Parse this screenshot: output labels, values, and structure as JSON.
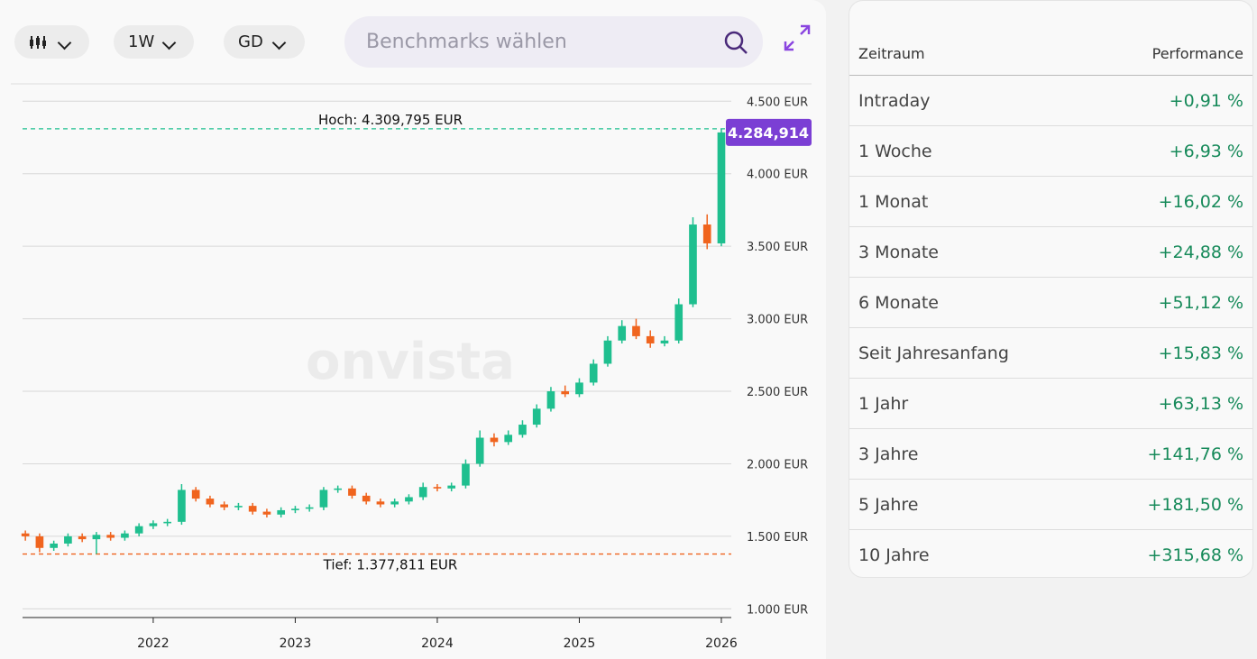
{
  "toolbar": {
    "interval": "1W",
    "indicator": "GD",
    "search_placeholder": "Benchmarks wählen"
  },
  "chart_data": {
    "type": "candlestick",
    "watermark": "onvista",
    "x": [
      2021.1,
      2021.2,
      2021.3,
      2021.4,
      2021.5,
      2021.6,
      2021.7,
      2021.8,
      2021.9,
      2022.0,
      2022.1,
      2022.2,
      2022.3,
      2022.4,
      2022.5,
      2022.6,
      2022.7,
      2022.8,
      2022.9,
      2023.0,
      2023.1,
      2023.2,
      2023.3,
      2023.4,
      2023.5,
      2023.6,
      2023.7,
      2023.8,
      2023.9,
      2024.0,
      2024.1,
      2024.2,
      2024.3,
      2024.4,
      2024.5,
      2024.6,
      2024.7,
      2024.8,
      2024.9,
      2025.0,
      2025.1,
      2025.2,
      2025.3,
      2025.4,
      2025.5,
      2025.6,
      2025.7,
      2025.8,
      2025.9,
      2026.0
    ],
    "open": [
      1520,
      1500,
      1420,
      1450,
      1500,
      1480,
      1510,
      1490,
      1520,
      1570,
      1590,
      1600,
      1820,
      1760,
      1720,
      1700,
      1710,
      1670,
      1650,
      1680,
      1690,
      1700,
      1820,
      1830,
      1780,
      1740,
      1720,
      1740,
      1770,
      1840,
      1830,
      1850,
      2000,
      2180,
      2150,
      2200,
      2270,
      2380,
      2500,
      2480,
      2560,
      2690,
      2850,
      2950,
      2880,
      2830,
      2850,
      3100,
      3650,
      3520
    ],
    "high": [
      1540,
      1520,
      1470,
      1520,
      1520,
      1530,
      1530,
      1540,
      1590,
      1610,
      1620,
      1860,
      1840,
      1780,
      1740,
      1730,
      1730,
      1690,
      1700,
      1710,
      1720,
      1840,
      1850,
      1850,
      1800,
      1760,
      1760,
      1790,
      1870,
      1860,
      1870,
      2030,
      2230,
      2210,
      2230,
      2300,
      2410,
      2530,
      2540,
      2590,
      2720,
      2880,
      2990,
      3000,
      2920,
      2880,
      3140,
      3700,
      3720,
      4310
    ],
    "low": [
      1470,
      1390,
      1400,
      1430,
      1460,
      1378,
      1470,
      1470,
      1500,
      1550,
      1570,
      1580,
      1740,
      1700,
      1680,
      1680,
      1650,
      1630,
      1630,
      1660,
      1670,
      1680,
      1800,
      1760,
      1720,
      1700,
      1700,
      1720,
      1750,
      1810,
      1810,
      1830,
      1980,
      2120,
      2130,
      2180,
      2250,
      2360,
      2460,
      2460,
      2540,
      2670,
      2830,
      2860,
      2800,
      2810,
      2830,
      3080,
      3480,
      3500
    ],
    "close": [
      1500,
      1420,
      1450,
      1500,
      1480,
      1510,
      1490,
      1520,
      1570,
      1590,
      1600,
      1820,
      1760,
      1720,
      1700,
      1710,
      1670,
      1650,
      1680,
      1690,
      1700,
      1820,
      1830,
      1780,
      1740,
      1720,
      1740,
      1770,
      1840,
      1830,
      1850,
      2000,
      2180,
      2150,
      2200,
      2270,
      2380,
      2500,
      2480,
      2560,
      2690,
      2850,
      2950,
      2880,
      2830,
      2850,
      3100,
      3650,
      3520,
      4285
    ],
    "up_color": "#1fbf8f",
    "down_color": "#f0641e",
    "xlim": [
      2021.08,
      2026.07
    ],
    "xticks": [
      2022,
      2023,
      2024,
      2025,
      2026
    ],
    "ylim": [
      940,
      4620
    ],
    "yticks": [
      {
        "value": 1000,
        "label": "1.000 EUR"
      },
      {
        "value": 1500,
        "label": "1.500 EUR"
      },
      {
        "value": 2000,
        "label": "2.000 EUR"
      },
      {
        "value": 2500,
        "label": "2.500 EUR"
      },
      {
        "value": 3000,
        "label": "3.000 EUR"
      },
      {
        "value": 3500,
        "label": "3.500 EUR"
      },
      {
        "value": 4000,
        "label": "4.000 EUR"
      },
      {
        "value": 4500,
        "label": "4.500 EUR"
      }
    ],
    "grid": true,
    "high_line": {
      "value": 4309.795,
      "label": "Hoch: 4.309,795 EUR",
      "color": "#1fbf8f"
    },
    "low_line": {
      "value": 1377.811,
      "label": "Tief: 1.377,811 EUR",
      "color": "#f0641e"
    },
    "last_price": {
      "value": 4284.914,
      "label": "4.284,914",
      "color": "#7b3fd4"
    }
  },
  "table": {
    "header": [
      "Zeitraum",
      "Performance"
    ],
    "rows": [
      [
        "Intraday",
        "+0,91 %"
      ],
      [
        "1 Woche",
        "+6,93 %"
      ],
      [
        "1 Monat",
        "+16,02 %"
      ],
      [
        "3 Monate",
        "+24,88 %"
      ],
      [
        "6 Monate",
        "+51,12 %"
      ],
      [
        "Seit Jahresanfang",
        "+15,83 %"
      ],
      [
        "1 Jahr",
        "+63,13 %"
      ],
      [
        "3 Jahre",
        "+141,76 %"
      ],
      [
        "5 Jahre",
        "+181,50 %"
      ],
      [
        "10 Jahre",
        "+315,68 %"
      ]
    ]
  }
}
